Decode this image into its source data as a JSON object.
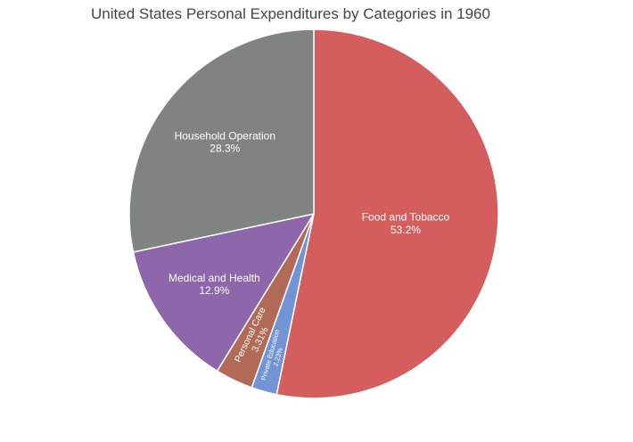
{
  "chart_data": {
    "type": "pie",
    "title": "United States Personal Expenditures by Categories in 1960",
    "direction": "clockwise",
    "start_angle_deg": 90,
    "slices": [
      {
        "label": "Food and Tobacco",
        "percent_label": "53.2%",
        "value": 53.2,
        "color": "#d45e5e"
      },
      {
        "label": "Private Education",
        "percent_label": "2.23%",
        "value": 2.23,
        "color": "#7294d4"
      },
      {
        "label": "Personal Care",
        "percent_label": "3.31%",
        "value": 3.31,
        "color": "#b06a55"
      },
      {
        "label": "Medical and Health",
        "percent_label": "12.9%",
        "value": 12.9,
        "color": "#8e67ab"
      },
      {
        "label": "Household Operation",
        "percent_label": "28.3%",
        "value": 28.3,
        "color": "#7f8483"
      }
    ]
  }
}
